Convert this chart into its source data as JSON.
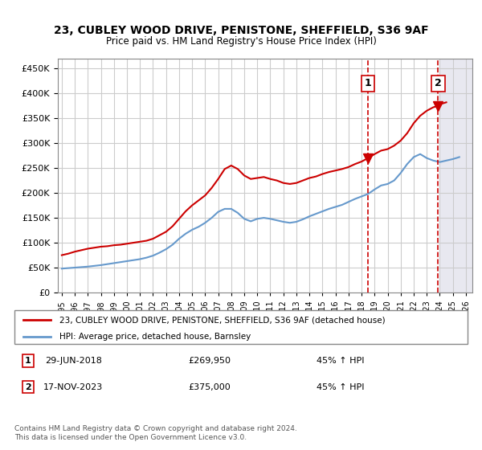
{
  "title": "23, CUBLEY WOOD DRIVE, PENISTONE, SHEFFIELD, S36 9AF",
  "subtitle": "Price paid vs. HM Land Registry's House Price Index (HPI)",
  "ylim": [
    0,
    470000
  ],
  "yticks": [
    0,
    50000,
    100000,
    150000,
    200000,
    250000,
    300000,
    350000,
    400000,
    450000
  ],
  "ytick_labels": [
    "£0",
    "£50K",
    "£100K",
    "£150K",
    "£200K",
    "£250K",
    "£300K",
    "£350K",
    "£400K",
    "£450K"
  ],
  "xlabel_years": [
    "1995",
    "1996",
    "1997",
    "1998",
    "1999",
    "2000",
    "2001",
    "2002",
    "2003",
    "2004",
    "2005",
    "2006",
    "2007",
    "2008",
    "2009",
    "2010",
    "2011",
    "2012",
    "2013",
    "2014",
    "2015",
    "2016",
    "2017",
    "2018",
    "2019",
    "2020",
    "2021",
    "2022",
    "2023",
    "2024",
    "2025",
    "2026"
  ],
  "house_color": "#cc0000",
  "hpi_color": "#6699cc",
  "future_bg_color": "#e8e8f0",
  "grid_color": "#cccccc",
  "marker1_date": 2018.5,
  "marker1_value": 269950,
  "marker1_label": "1",
  "marker2_date": 2023.88,
  "marker2_value": 375000,
  "marker2_label": "2",
  "legend_house": "23, CUBLEY WOOD DRIVE, PENISTONE, SHEFFIELD, S36 9AF (detached house)",
  "legend_hpi": "HPI: Average price, detached house, Barnsley",
  "note1_num": "1",
  "note1_date": "29-JUN-2018",
  "note1_price": "£269,950",
  "note1_pct": "45% ↑ HPI",
  "note2_num": "2",
  "note2_date": "17-NOV-2023",
  "note2_price": "£375,000",
  "note2_pct": "45% ↑ HPI",
  "footer": "Contains HM Land Registry data © Crown copyright and database right 2024.\nThis data is licensed under the Open Government Licence v3.0.",
  "house_x": [
    1995.0,
    1995.5,
    1996.0,
    1996.5,
    1997.0,
    1997.5,
    1998.0,
    1998.5,
    1999.0,
    1999.5,
    2000.0,
    2000.5,
    2001.0,
    2001.5,
    2002.0,
    2002.5,
    2003.0,
    2003.5,
    2004.0,
    2004.5,
    2005.0,
    2005.5,
    2006.0,
    2006.5,
    2007.0,
    2007.5,
    2008.0,
    2008.5,
    2009.0,
    2009.5,
    2010.0,
    2010.5,
    2011.0,
    2011.5,
    2012.0,
    2012.5,
    2013.0,
    2013.5,
    2014.0,
    2014.5,
    2015.0,
    2015.5,
    2016.0,
    2016.5,
    2017.0,
    2017.5,
    2018.0,
    2018.5,
    2019.0,
    2019.5,
    2020.0,
    2020.5,
    2021.0,
    2021.5,
    2022.0,
    2022.5,
    2023.0,
    2023.5,
    2023.88,
    2024.0,
    2024.5
  ],
  "house_y": [
    75000,
    78000,
    82000,
    85000,
    88000,
    90000,
    92000,
    93000,
    95000,
    96000,
    98000,
    100000,
    102000,
    104000,
    108000,
    115000,
    122000,
    133000,
    148000,
    163000,
    175000,
    185000,
    195000,
    210000,
    228000,
    248000,
    255000,
    248000,
    235000,
    228000,
    230000,
    232000,
    228000,
    225000,
    220000,
    218000,
    220000,
    225000,
    230000,
    233000,
    238000,
    242000,
    245000,
    248000,
    252000,
    258000,
    263000,
    269950,
    278000,
    285000,
    288000,
    295000,
    305000,
    320000,
    340000,
    355000,
    365000,
    372000,
    375000,
    378000,
    382000
  ],
  "hpi_x": [
    1995.0,
    1995.5,
    1996.0,
    1996.5,
    1997.0,
    1997.5,
    1998.0,
    1998.5,
    1999.0,
    1999.5,
    2000.0,
    2000.5,
    2001.0,
    2001.5,
    2002.0,
    2002.5,
    2003.0,
    2003.5,
    2004.0,
    2004.5,
    2005.0,
    2005.5,
    2006.0,
    2006.5,
    2007.0,
    2007.5,
    2008.0,
    2008.5,
    2009.0,
    2009.5,
    2010.0,
    2010.5,
    2011.0,
    2011.5,
    2012.0,
    2012.5,
    2013.0,
    2013.5,
    2014.0,
    2014.5,
    2015.0,
    2015.5,
    2016.0,
    2016.5,
    2017.0,
    2017.5,
    2018.0,
    2018.5,
    2019.0,
    2019.5,
    2020.0,
    2020.5,
    2021.0,
    2021.5,
    2022.0,
    2022.5,
    2023.0,
    2023.5,
    2024.0,
    2024.5,
    2025.0,
    2025.5
  ],
  "hpi_y": [
    48000,
    49000,
    50000,
    51000,
    52000,
    53500,
    55000,
    57000,
    59000,
    61000,
    63000,
    65000,
    67000,
    70000,
    74000,
    80000,
    87000,
    96000,
    108000,
    118000,
    126000,
    132000,
    140000,
    150000,
    162000,
    168000,
    168000,
    160000,
    148000,
    143000,
    148000,
    150000,
    148000,
    145000,
    142000,
    140000,
    142000,
    147000,
    153000,
    158000,
    163000,
    168000,
    172000,
    176000,
    182000,
    188000,
    193000,
    198000,
    207000,
    215000,
    218000,
    225000,
    240000,
    258000,
    272000,
    278000,
    270000,
    265000,
    262000,
    265000,
    268000,
    272000
  ]
}
